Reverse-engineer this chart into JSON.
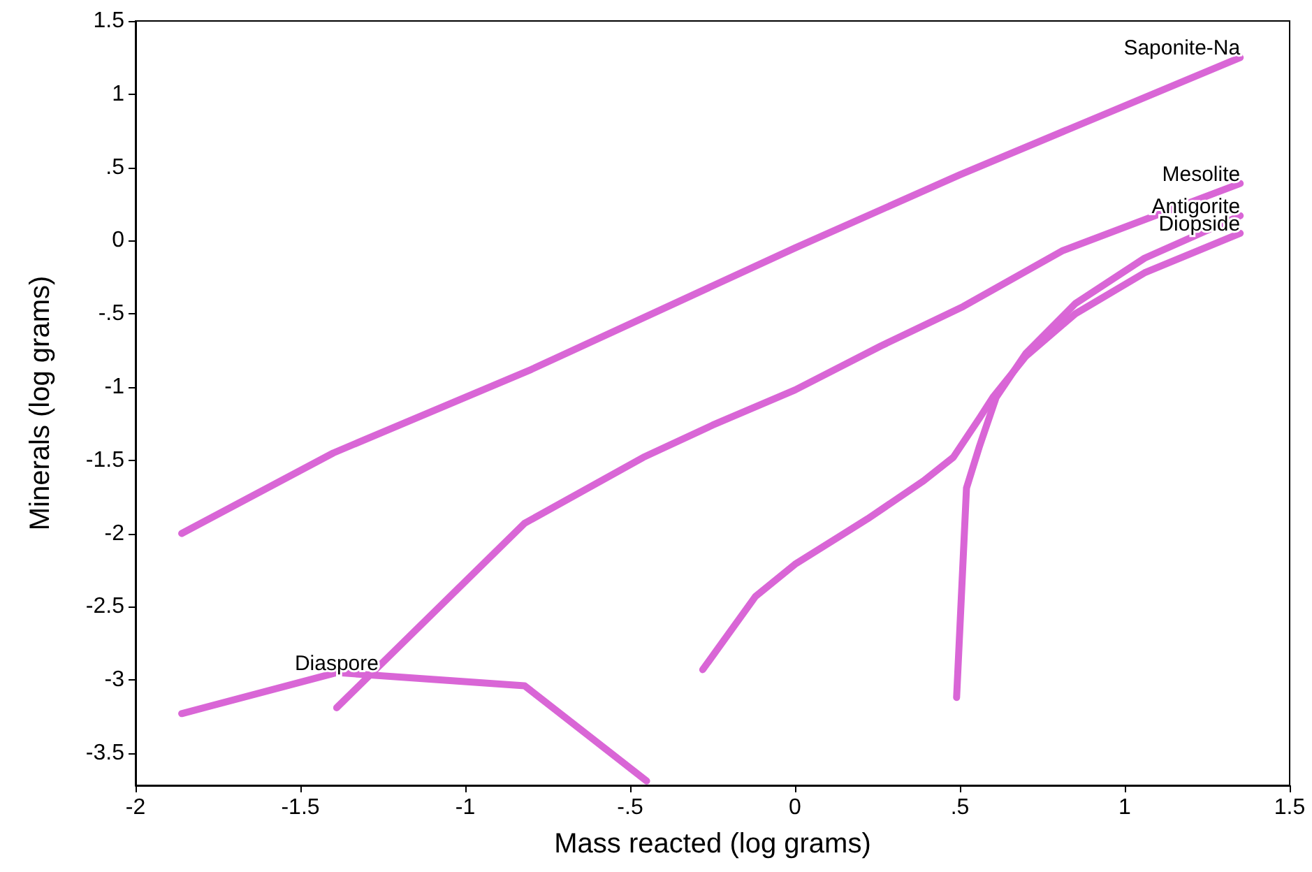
{
  "chart_data": {
    "type": "line",
    "xlabel": "Mass reacted (log grams)",
    "ylabel": "Minerals (log grams)",
    "xlim": [
      -2,
      1.5
    ],
    "xticks": [
      -2,
      -1.5,
      -1,
      {
        "value": -0.5,
        "label": "-.5"
      },
      0,
      {
        "value": 0.5,
        "label": ".5"
      },
      1,
      1.5
    ],
    "ylim": [
      -3.72,
      1.5
    ],
    "yticks": [
      {
        "value": -3.5,
        "label": "-3.5"
      },
      -3,
      -2.5,
      -2,
      -1.5,
      -1,
      {
        "value": -0.5,
        "label": "-.5"
      },
      0,
      {
        "value": 0.5,
        "label": ".5"
      },
      1,
      1.5
    ],
    "grid": false,
    "legend": false,
    "marker": "none",
    "line_style": "solid",
    "series": [
      {
        "name": "Saponite-Na",
        "color": "#d966d6",
        "x": [
          -1.86,
          -1.4,
          -0.8,
          0,
          0.5,
          1.35
        ],
        "values": [
          -2.0,
          -1.45,
          -0.88,
          -0.05,
          0.45,
          1.25
        ]
      },
      {
        "name": "Mesolite",
        "color": "#d966d6",
        "x": [
          -1.39,
          -0.82,
          -0.46,
          -0.25,
          0,
          0.26,
          0.51,
          0.81,
          1.35
        ],
        "values": [
          -3.19,
          -1.93,
          -1.48,
          -1.26,
          -1.02,
          -0.72,
          -0.45,
          -0.07,
          0.39
        ]
      },
      {
        "name": "Diopside",
        "color": "#d966d6",
        "x": [
          -0.28,
          -0.12,
          0,
          0.22,
          0.39,
          0.48,
          0.56,
          0.6,
          0.7,
          0.85,
          1.06,
          1.35
        ],
        "values": [
          -2.93,
          -2.43,
          -2.21,
          -1.9,
          -1.64,
          -1.48,
          -1.21,
          -1.07,
          -0.79,
          -0.5,
          -0.22,
          0.05
        ]
      },
      {
        "name": "Antigorite",
        "color": "#d966d6",
        "x": [
          0.49,
          0.52,
          0.56,
          0.61,
          0.7,
          0.85,
          1.06,
          1.35
        ],
        "values": [
          -3.12,
          -1.69,
          -1.4,
          -1.07,
          -0.77,
          -0.43,
          -0.12,
          0.17
        ]
      },
      {
        "name": "Diaspore",
        "color": "#d966d6",
        "x": [
          -1.86,
          -1.39,
          -0.82,
          -0.45
        ],
        "values": [
          -3.23,
          -2.95,
          -3.04,
          -3.69
        ]
      }
    ]
  }
}
